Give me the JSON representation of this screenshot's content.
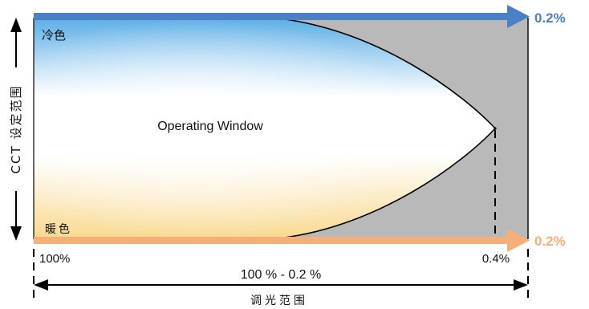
{
  "labels": {
    "cool_color": "冷色",
    "warm_color": "暖色",
    "operating_window": "Operating Window",
    "cct_range": "CCT 设定范围",
    "top_right_value": "0.2%",
    "bottom_right_value": "0.2%",
    "left_percent": "100%",
    "right_percent": "0.4%",
    "dimming_span": "100 % - 0.2 %",
    "dimming_range": "调光范围"
  },
  "colors": {
    "cool_arrow": "#4a80c4",
    "warm_arrow": "#f7ae79",
    "outside_region": "#b9b9b9",
    "cool_tint": "#5aaee6",
    "warm_tint": "#f9d98e"
  }
}
